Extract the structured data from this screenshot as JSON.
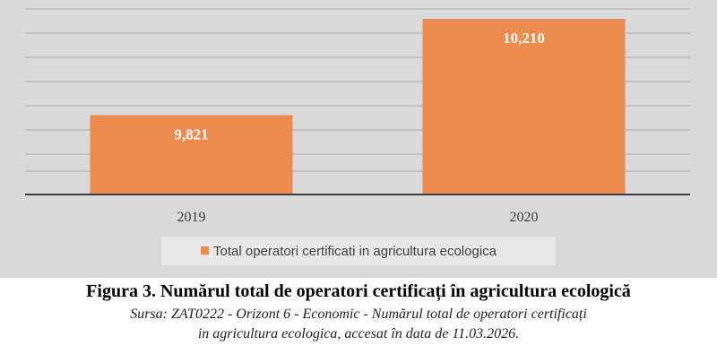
{
  "chart_data": {
    "type": "bar",
    "categories": [
      "2019",
      "2020"
    ],
    "series": [
      {
        "name": "Total operatori certificati in agricultura ecologica",
        "values": [
          9821,
          10210
        ]
      }
    ],
    "value_labels": [
      "9,821",
      "10,210"
    ],
    "ylim": [
      9500,
      10250
    ],
    "grid": true,
    "legend": "bottom-center",
    "xlabel": "",
    "ylabel": ""
  },
  "colors": {
    "bar": "#ED8B4F",
    "plot_bg": "#D9D9D9",
    "grid": "#ABABAB",
    "axis": "#404040",
    "label_text": "#ffffff",
    "legend_bg": "#E8E8E8"
  },
  "caption": {
    "title": "Figura 3. Numărul total de operatori certificați în agricultura ecologică",
    "source_line1": "Sursa: ZAT0222 - Orizont 6 - Economic - Numărul total de operatori certificați",
    "source_line2": "in agricultura ecologica, accesat în data de 11.03.2026."
  }
}
